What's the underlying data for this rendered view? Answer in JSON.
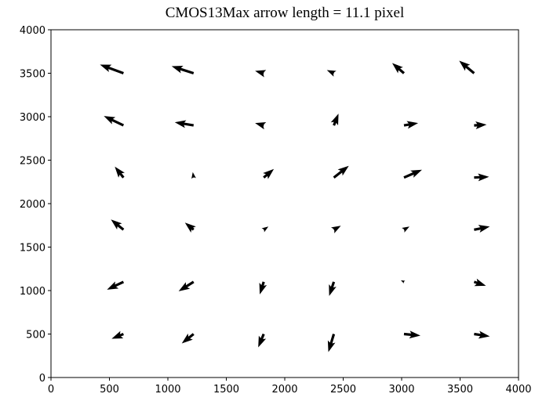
{
  "chart_data": {
    "type": "quiver",
    "title": "CMOS13Max arrow length = 11.1 pixel",
    "x": [
      620,
      1220,
      1820,
      2420,
      3020,
      3620,
      620,
      1220,
      1820,
      2420,
      3020,
      3620,
      620,
      1220,
      1820,
      2420,
      3020,
      3620,
      620,
      1220,
      1820,
      2420,
      3020,
      3620,
      620,
      1220,
      1820,
      2420,
      3020,
      3620,
      620,
      1220,
      1820,
      2420,
      3020,
      3620
    ],
    "y": [
      3500,
      3500,
      3500,
      3500,
      3500,
      3500,
      2900,
      2900,
      2900,
      2900,
      2900,
      2900,
      2300,
      2300,
      2300,
      2300,
      2300,
      2300,
      1700,
      1700,
      1700,
      1700,
      1700,
      1700,
      1100,
      1100,
      1100,
      1100,
      1100,
      1100,
      500,
      500,
      500,
      500,
      500,
      500
    ],
    "u": [
      -201,
      -188,
      -74,
      -60,
      -101,
      -128,
      -168,
      -161,
      -74,
      40,
      121,
      107,
      -74,
      -7,
      87,
      128,
      154,
      128,
      -107,
      -74,
      40,
      60,
      47,
      134,
      -141,
      -128,
      -34,
      -40,
      -27,
      101,
      -101,
      -101,
      -47,
      -47,
      141,
      134
    ],
    "v": [
      99,
      81,
      27,
      36,
      117,
      144,
      108,
      36,
      27,
      135,
      27,
      9,
      126,
      63,
      99,
      135,
      90,
      9,
      117,
      81,
      36,
      45,
      36,
      36,
      -90,
      -108,
      -144,
      -162,
      18,
      -45,
      -54,
      -108,
      -153,
      -207,
      -18,
      -27
    ],
    "color": "#000000",
    "xlim": [
      0,
      4000
    ],
    "ylim": [
      0,
      4000
    ],
    "xticks": [
      0,
      500,
      1000,
      1500,
      2000,
      2500,
      3000,
      3500,
      4000
    ],
    "yticks": [
      0,
      500,
      1000,
      1500,
      2000,
      2500,
      3000,
      3500,
      4000
    ]
  }
}
